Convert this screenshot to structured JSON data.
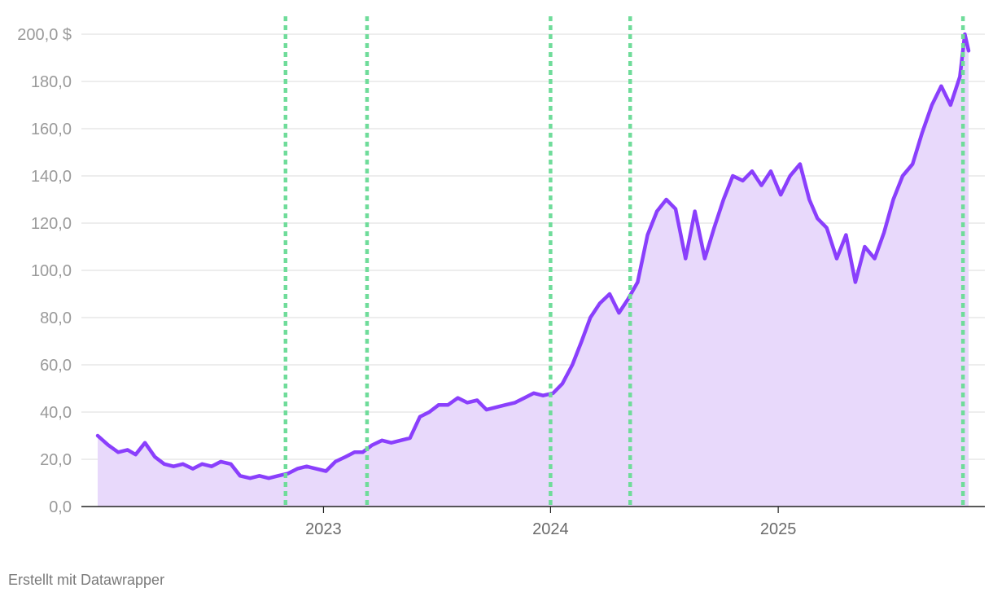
{
  "chart_data": {
    "type": "area",
    "title": "",
    "xlabel": "",
    "ylabel": "",
    "y_unit_label": "$",
    "ylim": [
      0,
      200
    ],
    "y_ticks": [
      0,
      20,
      40,
      60,
      80,
      100,
      120,
      140,
      160,
      180,
      200
    ],
    "y_tick_labels": [
      "0,0",
      "20,0",
      "40,0",
      "60,0",
      "80,0",
      "100,0",
      "120,0",
      "140,0",
      "160,0",
      "180,0",
      "200,0 $"
    ],
    "x_range": [
      "2022-01-03",
      "2025-11-03"
    ],
    "x_ticks": [
      {
        "date": "2023-01-01",
        "label": "2023"
      },
      {
        "date": "2024-01-01",
        "label": "2024"
      },
      {
        "date": "2025-01-01",
        "label": "2025"
      }
    ],
    "grid": true,
    "line_color": "#8a3ffc",
    "fill_color": "#e8d9fb",
    "marker_color": "#6fdc9a",
    "markers": [
      "2022-11-01",
      "2023-03-12",
      "2024-01-01",
      "2024-05-08",
      "2025-10-25"
    ],
    "series": [
      {
        "x": [
          "2022-01-03",
          "2022-01-20",
          "2022-02-05",
          "2022-02-20",
          "2022-03-05",
          "2022-03-20",
          "2022-04-05",
          "2022-04-20",
          "2022-05-05",
          "2022-05-20",
          "2022-06-05",
          "2022-06-20",
          "2022-07-05",
          "2022-07-20",
          "2022-08-05",
          "2022-08-20",
          "2022-09-05",
          "2022-09-20",
          "2022-10-05",
          "2022-10-20",
          "2022-11-05",
          "2022-11-20",
          "2022-12-05",
          "2022-12-20",
          "2023-01-05",
          "2023-01-20",
          "2023-02-05",
          "2023-02-20",
          "2023-03-05",
          "2023-03-20",
          "2023-04-05",
          "2023-04-20",
          "2023-05-05",
          "2023-05-20",
          "2023-06-05",
          "2023-06-20",
          "2023-07-05",
          "2023-07-20",
          "2023-08-05",
          "2023-08-20",
          "2023-09-05",
          "2023-09-20",
          "2023-10-05",
          "2023-10-20",
          "2023-11-05",
          "2023-11-20",
          "2023-12-05",
          "2023-12-20",
          "2024-01-05",
          "2024-01-20",
          "2024-02-05",
          "2024-02-20",
          "2024-03-05",
          "2024-03-20",
          "2024-04-05",
          "2024-04-20",
          "2024-05-05",
          "2024-05-20",
          "2024-06-05",
          "2024-06-20",
          "2024-07-05",
          "2024-07-20",
          "2024-08-05",
          "2024-08-20",
          "2024-09-05",
          "2024-09-20",
          "2024-10-05",
          "2024-10-20",
          "2024-11-05",
          "2024-11-20",
          "2024-12-05",
          "2024-12-20",
          "2025-01-05",
          "2025-01-20",
          "2025-02-05",
          "2025-02-20",
          "2025-03-05",
          "2025-03-20",
          "2025-04-05",
          "2025-04-20",
          "2025-05-05",
          "2025-05-20",
          "2025-06-05",
          "2025-06-20",
          "2025-07-05",
          "2025-07-20",
          "2025-08-05",
          "2025-08-20",
          "2025-09-05",
          "2025-09-20",
          "2025-10-05",
          "2025-10-20",
          "2025-10-28",
          "2025-11-03"
        ],
        "values": [
          30,
          26,
          23,
          24,
          22,
          27,
          21,
          18,
          17,
          18,
          16,
          18,
          17,
          19,
          18,
          13,
          12,
          13,
          12,
          13,
          14,
          16,
          17,
          16,
          15,
          19,
          21,
          23,
          23,
          26,
          28,
          27,
          28,
          29,
          38,
          40,
          43,
          43,
          46,
          44,
          45,
          41,
          42,
          43,
          44,
          46,
          48,
          47,
          48,
          52,
          60,
          70,
          80,
          86,
          90,
          82,
          88,
          95,
          115,
          125,
          130,
          126,
          105,
          125,
          105,
          118,
          130,
          140,
          138,
          142,
          136,
          142,
          132,
          140,
          145,
          130,
          122,
          118,
          105,
          115,
          95,
          110,
          105,
          116,
          130,
          140,
          145,
          158,
          170,
          178,
          170,
          182,
          200,
          193
        ]
      }
    ]
  },
  "footer": {
    "credit": "Erstellt mit Datawrapper"
  }
}
